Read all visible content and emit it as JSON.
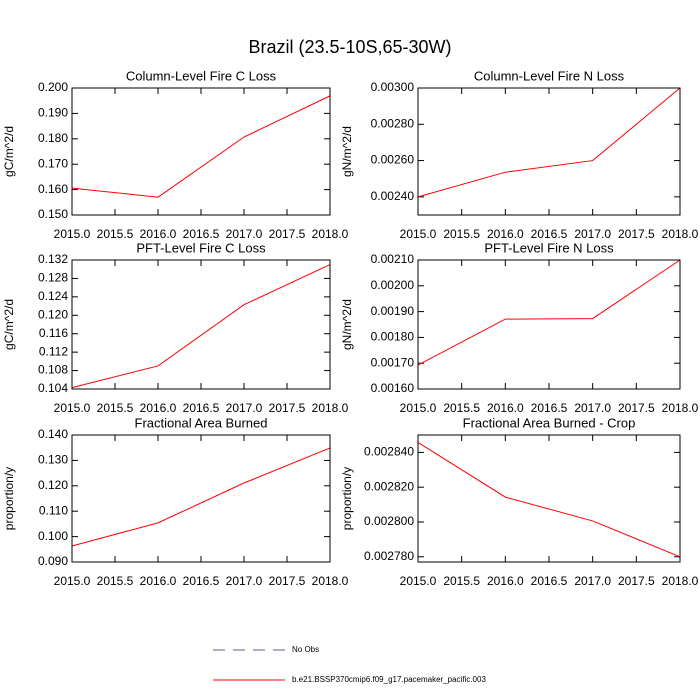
{
  "title": "Brazil (23.5-10S,65-30W)",
  "legend": [
    {
      "name": "No Obs",
      "color": "#5b5b9e",
      "dashed": true
    },
    {
      "name": "b.e21.BSSP370cmip6.f09_g17.pacemaker_pacific.003",
      "color": "#ff0000",
      "dashed": false
    }
  ],
  "chart_data": [
    {
      "type": "line",
      "title": "Column-Level Fire C Loss",
      "ylabel": "gC/m^2/d",
      "color": "#ff0000",
      "x": [
        2015,
        2016,
        2017,
        2018
      ],
      "values": [
        0.1606,
        0.157,
        0.1807,
        0.1969
      ],
      "xlim": [
        2015,
        2018
      ],
      "xticks": [
        {
          "value": 2015,
          "label": "2015.0"
        },
        {
          "value": 2015.5,
          "label": "2015.5"
        },
        {
          "value": 2016,
          "label": "2016.0"
        },
        {
          "value": 2016.5,
          "label": "2016.5"
        },
        {
          "value": 2017,
          "label": "2017.0"
        },
        {
          "value": 2017.5,
          "label": "2017.5"
        },
        {
          "value": 2018,
          "label": "2018.0"
        }
      ],
      "ylim": [
        0.15,
        0.2
      ],
      "yticks": [
        {
          "value": 0.15,
          "label": "0.150"
        },
        {
          "value": 0.16,
          "label": "0.160"
        },
        {
          "value": 0.17,
          "label": "0.170"
        },
        {
          "value": 0.18,
          "label": "0.180"
        },
        {
          "value": 0.19,
          "label": "0.190"
        },
        {
          "value": 0.2,
          "label": "0.200"
        }
      ]
    },
    {
      "type": "line",
      "title": "Column-Level Fire N Loss",
      "ylabel": "gN/m^2/d",
      "color": "#ff0000",
      "x": [
        2015,
        2016,
        2017,
        2018
      ],
      "values": [
        0.0024,
        0.002536,
        0.0026,
        0.003
      ],
      "xlim": [
        2015,
        2018
      ],
      "xticks": [
        {
          "value": 2015,
          "label": "2015.0"
        },
        {
          "value": 2015.5,
          "label": "2015.5"
        },
        {
          "value": 2016,
          "label": "2016.0"
        },
        {
          "value": 2016.5,
          "label": "2016.5"
        },
        {
          "value": 2017,
          "label": "2017.0"
        },
        {
          "value": 2017.5,
          "label": "2017.5"
        },
        {
          "value": 2018,
          "label": "2018.0"
        }
      ],
      "ylim": [
        0.0023,
        0.003
      ],
      "yticks": [
        {
          "value": 0.0024,
          "label": "0.00240"
        },
        {
          "value": 0.0026,
          "label": "0.00260"
        },
        {
          "value": 0.0028,
          "label": "0.00280"
        },
        {
          "value": 0.003,
          "label": "0.00300"
        }
      ]
    },
    {
      "type": "line",
      "title": "PFT-Level Fire C Loss",
      "ylabel": "gC/m^2/d",
      "color": "#ff0000",
      "x": [
        2015,
        2016,
        2017,
        2018
      ],
      "values": [
        0.1043,
        0.109,
        0.1223,
        0.131
      ],
      "xlim": [
        2015,
        2018
      ],
      "xticks": [
        {
          "value": 2015,
          "label": "2015.0"
        },
        {
          "value": 2015.5,
          "label": "2015.5"
        },
        {
          "value": 2016,
          "label": "2016.0"
        },
        {
          "value": 2016.5,
          "label": "2016.5"
        },
        {
          "value": 2017,
          "label": "2017.0"
        },
        {
          "value": 2017.5,
          "label": "2017.5"
        },
        {
          "value": 2018,
          "label": "2018.0"
        }
      ],
      "ylim": [
        0.104,
        0.132
      ],
      "yticks": [
        {
          "value": 0.104,
          "label": "0.104"
        },
        {
          "value": 0.108,
          "label": "0.108"
        },
        {
          "value": 0.112,
          "label": "0.112"
        },
        {
          "value": 0.116,
          "label": "0.116"
        },
        {
          "value": 0.12,
          "label": "0.120"
        },
        {
          "value": 0.124,
          "label": "0.124"
        },
        {
          "value": 0.128,
          "label": "0.128"
        },
        {
          "value": 0.132,
          "label": "0.132"
        }
      ]
    },
    {
      "type": "line",
      "title": "PFT-Level Fire N Loss",
      "ylabel": "gN/m^2/d",
      "color": "#ff0000",
      "x": [
        2015,
        2016,
        2017,
        2018
      ],
      "values": [
        0.001693,
        0.001871,
        0.001873,
        0.0021
      ],
      "xlim": [
        2015,
        2018
      ],
      "xticks": [
        {
          "value": 2015,
          "label": "2015.0"
        },
        {
          "value": 2015.5,
          "label": "2015.5"
        },
        {
          "value": 2016,
          "label": "2016.0"
        },
        {
          "value": 2016.5,
          "label": "2016.5"
        },
        {
          "value": 2017,
          "label": "2017.0"
        },
        {
          "value": 2017.5,
          "label": "2017.5"
        },
        {
          "value": 2018,
          "label": "2018.0"
        }
      ],
      "ylim": [
        0.0016,
        0.0021
      ],
      "yticks": [
        {
          "value": 0.0016,
          "label": "0.00160"
        },
        {
          "value": 0.0017,
          "label": "0.00170"
        },
        {
          "value": 0.0018,
          "label": "0.00180"
        },
        {
          "value": 0.0019,
          "label": "0.00190"
        },
        {
          "value": 0.002,
          "label": "0.00200"
        },
        {
          "value": 0.0021,
          "label": "0.00210"
        }
      ]
    },
    {
      "type": "line",
      "title": "Fractional Area Burned",
      "ylabel": "proportion/y",
      "color": "#ff0000",
      "x": [
        2015,
        2016,
        2017,
        2018
      ],
      "values": [
        0.0963,
        0.1054,
        0.1211,
        0.1349
      ],
      "xlim": [
        2015,
        2018
      ],
      "xticks": [
        {
          "value": 2015,
          "label": "2015.0"
        },
        {
          "value": 2015.5,
          "label": "2015.5"
        },
        {
          "value": 2016,
          "label": "2016.0"
        },
        {
          "value": 2016.5,
          "label": "2016.5"
        },
        {
          "value": 2017,
          "label": "2017.0"
        },
        {
          "value": 2017.5,
          "label": "2017.5"
        },
        {
          "value": 2018,
          "label": "2018.0"
        }
      ],
      "ylim": [
        0.09,
        0.14
      ],
      "yticks": [
        {
          "value": 0.09,
          "label": "0.090"
        },
        {
          "value": 0.1,
          "label": "0.100"
        },
        {
          "value": 0.11,
          "label": "0.110"
        },
        {
          "value": 0.12,
          "label": "0.120"
        },
        {
          "value": 0.13,
          "label": "0.130"
        },
        {
          "value": 0.14,
          "label": "0.140"
        }
      ]
    },
    {
      "type": "line",
      "title": "Fractional Area Burned - Crop",
      "ylabel": "proportion/y",
      "color": "#ff0000",
      "x": [
        2015,
        2016,
        2017,
        2018
      ],
      "values": [
        0.0028457,
        0.0028143,
        0.0028006,
        0.00278
      ],
      "xlim": [
        2015,
        2018
      ],
      "xticks": [
        {
          "value": 2015,
          "label": "2015.0"
        },
        {
          "value": 2015.5,
          "label": "2015.5"
        },
        {
          "value": 2016,
          "label": "2016.0"
        },
        {
          "value": 2016.5,
          "label": "2016.5"
        },
        {
          "value": 2017,
          "label": "2017.0"
        },
        {
          "value": 2017.5,
          "label": "2017.5"
        },
        {
          "value": 2018,
          "label": "2018.0"
        }
      ],
      "ylim": [
        0.002777,
        0.00285
      ],
      "yticks": [
        {
          "value": 0.00278,
          "label": "0.002780"
        },
        {
          "value": 0.0028,
          "label": "0.002800"
        },
        {
          "value": 0.00282,
          "label": "0.002820"
        },
        {
          "value": 0.00284,
          "label": "0.002840"
        }
      ]
    }
  ]
}
